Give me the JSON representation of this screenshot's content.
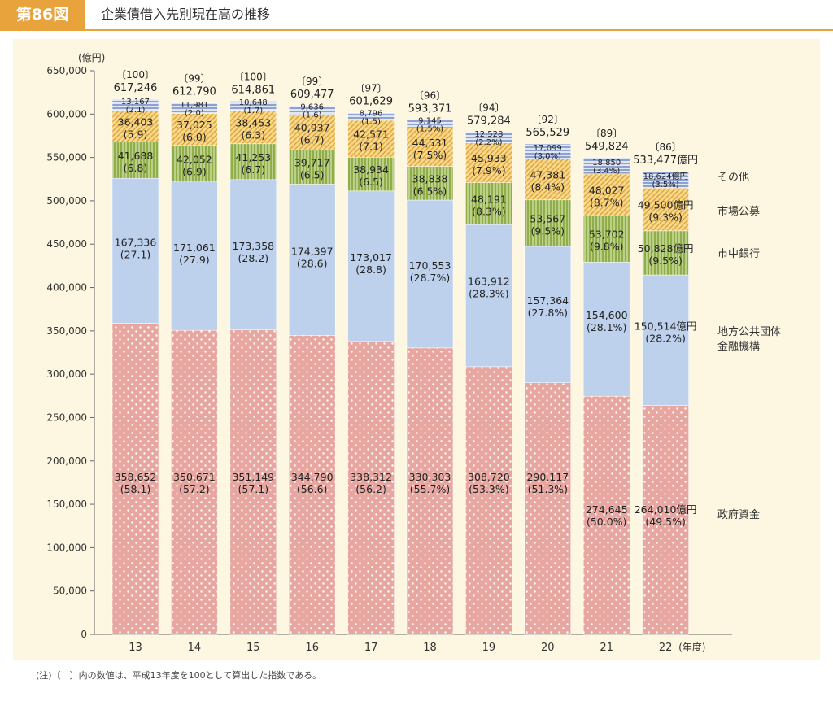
{
  "header": {
    "figure_number": "第86図",
    "title": "企業債借入先別現在高の推移"
  },
  "note": "(注)〔　〕内の数値は、平成13年度を100として算出した指数である。",
  "colors": {
    "badge": "#e8a33d",
    "panel": "#fdf6e0",
    "seifu": "#e7a7a0",
    "chihou": "#bdd0ec",
    "shichu": "#a8c26a",
    "shijo": "#f3cc73",
    "other": "#bcc8e6"
  },
  "chart_data": {
    "type": "bar",
    "stacked": true,
    "ylabel": "(億円)",
    "xunit": "(年度)",
    "ylim": [
      0,
      650000
    ],
    "yticks": [
      "0",
      "50,000",
      "100,000",
      "150,000",
      "200,000",
      "250,000",
      "300,000",
      "350,000",
      "400,000",
      "450,000",
      "500,000",
      "550,000",
      "600,000",
      "650,000"
    ],
    "categories": [
      "13",
      "14",
      "15",
      "16",
      "17",
      "18",
      "19",
      "20",
      "21",
      "22"
    ],
    "series": [
      {
        "key": "seifu",
        "name": "政府資金",
        "values": [
          358652,
          350671,
          351149,
          344790,
          338312,
          330303,
          308720,
          290117,
          274645,
          264010
        ],
        "labels": [
          "358,652",
          "350,671",
          "351,149",
          "344,790",
          "338,312",
          "330,303",
          "308,720",
          "290,117",
          "274,645",
          "264,010億円"
        ],
        "pct": [
          "(58.1)",
          "(57.2)",
          "(57.1)",
          "(56.6)",
          "(56.2)",
          "(55.7%)",
          "(53.3%)",
          "(51.3%)",
          "(50.0%)",
          "(49.5%)"
        ]
      },
      {
        "key": "chihou",
        "name": "地方公共団体金融機構",
        "values": [
          167336,
          171061,
          173358,
          174397,
          173017,
          170553,
          163912,
          157364,
          154600,
          150514
        ],
        "labels": [
          "167,336",
          "171,061",
          "173,358",
          "174,397",
          "173,017",
          "170,553",
          "163,912",
          "157,364",
          "154,600",
          "150,514億円"
        ],
        "pct": [
          "(27.1)",
          "(27.9)",
          "(28.2)",
          "(28.6)",
          "(28.8)",
          "(28.7%)",
          "(28.3%)",
          "(27.8%)",
          "(28.1%)",
          "(28.2%)"
        ]
      },
      {
        "key": "shichu",
        "name": "市中銀行",
        "values": [
          41688,
          42052,
          41253,
          39717,
          38934,
          38838,
          48191,
          53567,
          53702,
          50828
        ],
        "labels": [
          "41,688",
          "42,052",
          "41,253",
          "39,717",
          "38,934",
          "38,838",
          "48,191",
          "53,567",
          "53,702",
          "50,828億円"
        ],
        "pct": [
          "(6.8)",
          "(6.9)",
          "(6.7)",
          "(6.5)",
          "(6.5)",
          "(6.5%)",
          "(8.3%)",
          "(9.5%)",
          "(9.8%)",
          "(9.5%)"
        ]
      },
      {
        "key": "shijo",
        "name": "市場公募",
        "values": [
          36403,
          37025,
          38453,
          40937,
          42571,
          44531,
          45933,
          47381,
          48027,
          49500
        ],
        "labels": [
          "36,403",
          "37,025",
          "38,453",
          "40,937",
          "42,571",
          "44,531",
          "45,933",
          "47,381",
          "48,027",
          "49,500億円"
        ],
        "pct": [
          "(5.9)",
          "(6.0)",
          "(6.3)",
          "(6.7)",
          "(7.1)",
          "(7.5%)",
          "(7.9%)",
          "(8.4%)",
          "(8.7%)",
          "(9.3%)"
        ]
      },
      {
        "key": "other",
        "name": "その他",
        "values": [
          13167,
          11981,
          10648,
          9636,
          8796,
          9145,
          12528,
          17099,
          18850,
          18624
        ],
        "labels": [
          "13,167",
          "11,981",
          "10,648",
          "9,636",
          "8,796",
          "9,145",
          "12,528",
          "17,099",
          "18,850",
          "18,624億円"
        ],
        "pct": [
          "(2.1)",
          "(2.0)",
          "(1.7)",
          "(1.6)",
          "(1.5)",
          "(1.5%)",
          "(2.2%)",
          "(3.0%)",
          "(3.4%)",
          "(3.5%)"
        ]
      }
    ],
    "totals": [
      617246,
      612790,
      614861,
      609477,
      601629,
      593371,
      579284,
      565529,
      549824,
      533477
    ],
    "total_labels": [
      "617,246",
      "612,790",
      "614,861",
      "609,477",
      "601,629",
      "593,371",
      "579,284",
      "565,529",
      "549,824",
      "533,477億円"
    ],
    "index": [
      "〔100〕",
      "〔99〕",
      "〔100〕",
      "〔99〕",
      "〔97〕",
      "〔96〕",
      "〔94〕",
      "〔92〕",
      "〔89〕",
      "〔86〕"
    ],
    "legend": [
      "その他",
      "市場公募",
      "市中銀行",
      "地方公共団体金融機構",
      "政府資金"
    ]
  }
}
